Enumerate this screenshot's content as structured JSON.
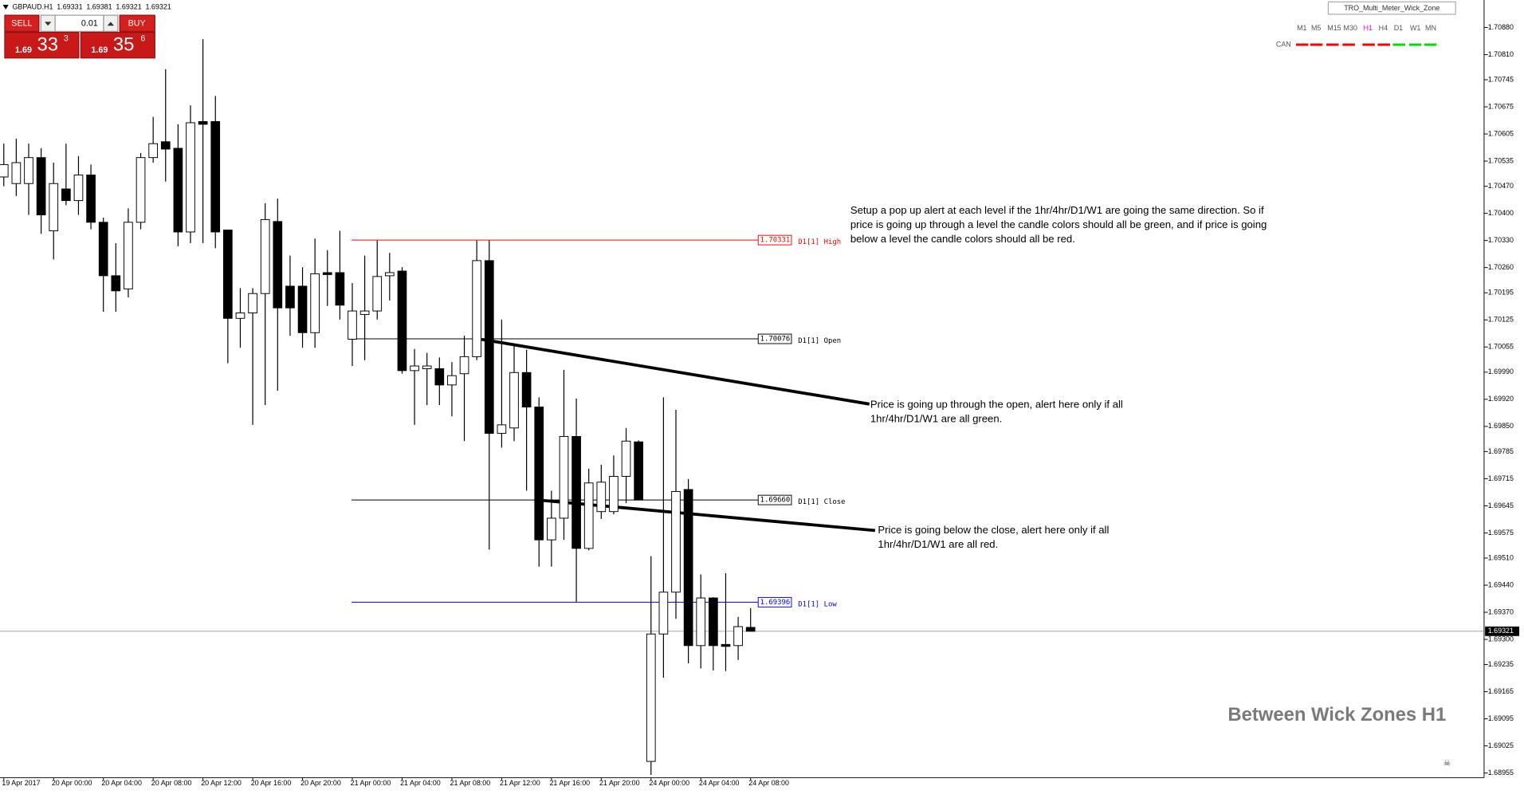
{
  "header": {
    "symbol": "GBPAUD.H1"
  },
  "trade_panel": {
    "sell": "SELL",
    "buy": "BUY",
    "lot": "0.01",
    "bid": {
      "big": "1.69",
      "pips": "33",
      "point": "3"
    },
    "ask": {
      "big": "1.69",
      "pips": "35",
      "point": "6"
    }
  },
  "meter": {
    "title": "TRO_Multi_Meter_Wick_Zone",
    "row_label": "CAN",
    "timeframes": [
      {
        "label": "M1",
        "color": "#555555",
        "signal": "#ff0000"
      },
      {
        "label": "M5",
        "color": "#555555",
        "signal": "#ff0000"
      },
      {
        "label": "M15",
        "color": "#555555",
        "signal": "#ff0000"
      },
      {
        "label": "M30",
        "color": "#555555",
        "signal": "#ff0000"
      },
      {
        "label": "H1",
        "color": "#ff00ff",
        "signal": "#ff0000"
      },
      {
        "label": "H4",
        "color": "#555555",
        "signal": "#ff0000"
      },
      {
        "label": "D1",
        "color": "#555555",
        "signal": "#00dd00"
      },
      {
        "label": "W1",
        "color": "#555555",
        "signal": "#00dd00"
      },
      {
        "label": "MN",
        "color": "#555555",
        "signal": "#00dd00"
      }
    ]
  },
  "annotations": [
    [
      "Setup a pop up alert at each level  if the 1hr/4hr/D1/W1 are going the same direction.  So if",
      "price is going up through a level the candle colors should all be green, and if price is going",
      "below a level the candle colors should all be red."
    ],
    [
      "Price is going up through the open, alert here only if all",
      "1hr/4hr/D1/W1 are all green."
    ],
    [
      "Price is going below the close, alert here only if all",
      "1hr/4hr/D1/W1 are all red."
    ]
  ],
  "watermark": "Between Wick Zones H1",
  "chart_data": {
    "type": "candlestick",
    "categories": [
      "19 Apr 2017",
      null,
      null,
      null,
      "20 Apr 00:00",
      null,
      null,
      null,
      "20 Apr 04:00",
      null,
      null,
      null,
      "20 Apr 08:00",
      null,
      null,
      null,
      "20 Apr 12:00",
      null,
      null,
      null,
      "20 Apr 16:00",
      null,
      null,
      null,
      "20 Apr 20:00",
      null,
      null,
      null,
      "21 Apr 00:00",
      null,
      null,
      null,
      "21 Apr 04:00",
      null,
      null,
      null,
      "21 Apr 08:00",
      null,
      null,
      null,
      "21 Apr 12:00",
      null,
      null,
      null,
      "21 Apr 16:00",
      null,
      null,
      null,
      "21 Apr 20:00",
      null,
      null,
      null,
      "24 Apr 00:00",
      null,
      null,
      null,
      "24 Apr 04:00",
      null,
      null,
      null,
      "24 Apr 08:00"
    ],
    "open": [
      1.70494,
      1.70477,
      1.70477,
      1.70544,
      1.70355,
      1.70463,
      1.70433,
      1.70499,
      1.70377,
      1.70239,
      1.70205,
      1.70377,
      1.70544,
      1.70585,
      1.70568,
      1.70352,
      1.70637,
      1.70637,
      1.70357,
      1.70129,
      1.70143,
      1.70193,
      1.70379,
      1.70212,
      1.70212,
      1.70092,
      1.70247,
      1.70247,
      1.70075,
      1.70139,
      1.70148,
      1.70239,
      1.70251,
      1.69994,
      1.69999,
      1.69999,
      1.69957,
      1.69986,
      1.7003,
      1.70278,
      1.69832,
      1.69846,
      1.69989,
      1.699,
      1.69557,
      1.69613,
      1.69824,
      1.69535,
      1.6963,
      1.6963,
      1.69721,
      1.6981,
      1.68985,
      1.69314,
      1.69422,
      1.69687,
      1.69284,
      1.69407,
      1.69287,
      1.69284,
      1.69331
    ],
    "high": [
      1.7058,
      1.70593,
      1.7058,
      1.70568,
      1.70531,
      1.7058,
      1.70548,
      1.70526,
      1.70389,
      1.70323,
      1.70413,
      1.70556,
      1.70649,
      1.70772,
      1.7063,
      1.70679,
      1.7085,
      1.70703,
      1.70357,
      1.70207,
      1.70207,
      1.70426,
      1.70438,
      1.70291,
      1.70261,
      1.70335,
      1.70305,
      1.70355,
      1.7022,
      1.70291,
      1.7033,
      1.70298,
      1.70261,
      1.7005,
      1.7004,
      1.70028,
      1.70016,
      1.70084,
      1.7033,
      1.7033,
      1.70126,
      1.7006,
      1.70048,
      1.69925,
      1.69684,
      1.69996,
      1.69922,
      1.69741,
      1.69751,
      1.69775,
      1.69846,
      1.69814,
      1.69515,
      1.69925,
      1.69893,
      1.69714,
      1.69468,
      1.69409,
      1.69471,
      1.69358,
      1.69381
    ],
    "low": [
      1.7047,
      1.70445,
      1.70396,
      1.70347,
      1.70281,
      1.70421,
      1.70396,
      1.70359,
      1.70146,
      1.70146,
      1.70183,
      1.70359,
      1.70531,
      1.70482,
      1.70315,
      1.70323,
      1.70323,
      1.7031,
      1.70013,
      1.70053,
      1.69854,
      1.69905,
      1.69942,
      1.70084,
      1.70053,
      1.70053,
      1.70161,
      1.70126,
      1.70006,
      1.70021,
      1.70126,
      1.70175,
      1.69986,
      1.69854,
      1.69905,
      1.69905,
      1.69876,
      1.69812,
      1.70021,
      1.69532,
      1.69795,
      1.69812,
      1.69684,
      1.69488,
      1.69488,
      1.69557,
      1.69397,
      1.6953,
      1.69611,
      1.69623,
      1.69652,
      1.6966,
      1.6895,
      1.69201,
      1.69353,
      1.69238,
      1.69225,
      1.6922,
      1.69218,
      1.69247,
      1.69321
    ],
    "close": [
      1.70526,
      1.70531,
      1.70544,
      1.70396,
      1.70477,
      1.70433,
      1.70499,
      1.70377,
      1.70239,
      1.702,
      1.70377,
      1.70544,
      1.7058,
      1.70566,
      1.70352,
      1.70634,
      1.7063,
      1.70352,
      1.70129,
      1.70143,
      1.70193,
      1.70384,
      1.70156,
      1.70156,
      1.70092,
      1.70244,
      1.70242,
      1.70163,
      1.70148,
      1.70148,
      1.70237,
      1.70247,
      1.69994,
      1.70006,
      1.70006,
      1.69957,
      1.69981,
      1.7003,
      1.70278,
      1.69832,
      1.69854,
      1.69989,
      1.699,
      1.69557,
      1.69613,
      1.69824,
      1.69535,
      1.69704,
      1.69706,
      1.69721,
      1.69812,
      1.6966,
      1.69314,
      1.69422,
      1.69682,
      1.69284,
      1.69407,
      1.69284,
      1.69282,
      1.69333,
      1.69321
    ],
    "up_color": "#ffffff",
    "down_color": "#000000",
    "ylim": [
      1.68943,
      1.70946
    ],
    "yticks": [
      {
        "value": 1.7088,
        "label": "1.70880"
      },
      {
        "value": 1.7081,
        "label": "1.70810"
      },
      1.70745,
      1.70675,
      1.70605,
      1.70535,
      {
        "value": 1.7047,
        "label": "1.70470"
      },
      {
        "value": 1.704,
        "label": "1.70400"
      },
      {
        "value": 1.7033,
        "label": "1.70330"
      },
      {
        "value": 1.7026,
        "label": "1.70260"
      },
      1.70195,
      1.70125,
      1.70055,
      {
        "value": 1.6999,
        "label": "1.69990"
      },
      {
        "value": 1.6992,
        "label": "1.69920"
      },
      {
        "value": 1.6985,
        "label": "1.69850"
      },
      1.69785,
      1.69715,
      1.69645,
      1.69575,
      {
        "value": 1.6951,
        "label": "1.69510"
      },
      {
        "value": 1.6944,
        "label": "1.69440"
      },
      {
        "value": 1.6937,
        "label": "1.69370"
      },
      {
        "value": 1.693,
        "label": "1.69300"
      },
      1.69235,
      1.69165,
      1.69095,
      1.69025,
      1.68955
    ],
    "levels": [
      {
        "name": "D1[1] High",
        "value": 1.70331,
        "color": "#ff0000"
      },
      {
        "name": "D1[1] Open",
        "value": 1.70076,
        "color": "#000000"
      },
      {
        "name": "D1[1] Close",
        "value": 1.6966,
        "label": "1.69660",
        "color": "#000000"
      },
      {
        "name": "D1[1] Low",
        "value": 1.69396,
        "color": "#0000ff"
      }
    ],
    "grid": false
  }
}
